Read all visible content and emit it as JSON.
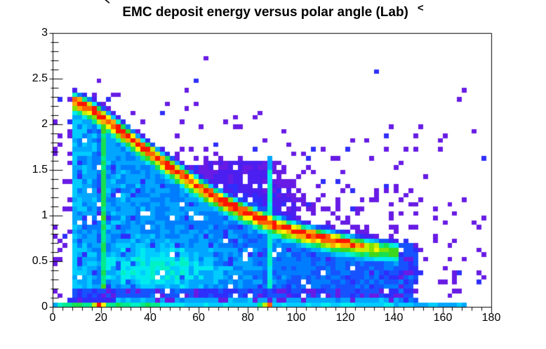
{
  "title": {
    "text": "EMC deposit energy versus polar angle (Lab)",
    "prefix_mark": "<",
    "suffix_mark": "<"
  },
  "chart_data": {
    "type": "heatmap",
    "title": "EMC deposit energy versus polar angle (Lab)",
    "x_range": [
      0,
      180
    ],
    "y_range": [
      0,
      3
    ],
    "x_bin_width": 2,
    "y_bin_width": 0.05,
    "grid": false,
    "legend": "none",
    "x_ticks": {
      "major_values": [
        0,
        20,
        40,
        60,
        80,
        100,
        120,
        140,
        160,
        180
      ],
      "labels": [
        "0",
        "20",
        "40",
        "60",
        "80",
        "100",
        "120",
        "140",
        "160",
        "180"
      ],
      "minor_step": 4
    },
    "y_ticks": {
      "major_values": [
        0,
        0.5,
        1,
        1.5,
        2,
        2.5,
        3
      ],
      "labels": [
        "0",
        "0.5",
        "1",
        "1.5",
        "2",
        "2.5",
        "3"
      ],
      "minor_step": 0.1
    },
    "palette": [
      "#681be4",
      "#4a1ff0",
      "#2e2efc",
      "#1653ff",
      "#007dff",
      "#00a6ff",
      "#00ccff",
      "#00ebef",
      "#00f2c4",
      "#00ea8e",
      "#16e051",
      "#3dd71d",
      "#80e300",
      "#c4ee00",
      "#fdf500",
      "#ffa800",
      "#ff6000",
      "#ff1400"
    ],
    "background": "#ffffff",
    "frame_color": "#000000",
    "seed": 42,
    "ridge": {
      "comment_visible_structure": "bright red correlation band: deposit energy falls from ~2.25 GeV-equivalent at 10 deg to ~0.62 at 141 deg",
      "points": [
        [
          8,
          2.27
        ],
        [
          12,
          2.23
        ],
        [
          16,
          2.17
        ],
        [
          20,
          2.1
        ],
        [
          24,
          2.02
        ],
        [
          28,
          1.94
        ],
        [
          32,
          1.86
        ],
        [
          36,
          1.77
        ],
        [
          40,
          1.7
        ],
        [
          45,
          1.6
        ],
        [
          50,
          1.51
        ],
        [
          55,
          1.42
        ],
        [
          60,
          1.33
        ],
        [
          65,
          1.25
        ],
        [
          70,
          1.17
        ],
        [
          75,
          1.1
        ],
        [
          80,
          1.04
        ],
        [
          85,
          0.98
        ],
        [
          90,
          0.93
        ],
        [
          95,
          0.88
        ],
        [
          100,
          0.84
        ],
        [
          105,
          0.8
        ],
        [
          110,
          0.77
        ],
        [
          115,
          0.74
        ],
        [
          120,
          0.71
        ],
        [
          125,
          0.68
        ],
        [
          130,
          0.66
        ],
        [
          135,
          0.64
        ],
        [
          141,
          0.62
        ]
      ]
    },
    "features": {
      "acceptance_min_theta": 8,
      "ridge_end_theta": 141,
      "endcap_block_end_theta": 150,
      "gap_stripe_theta": 21,
      "dim_column_theta": 19,
      "mid_stripe_theta": 89,
      "mid_stripe_top_E": 1.6,
      "left_spike_top_E": 2.34,
      "bottom_bright_row_E": 0.05,
      "bottom_dark_band_E": [
        0.05,
        0.2
      ],
      "green_blob_center": [
        45,
        0.42
      ],
      "bottom_row_hotspots_theta": [
        21,
        89
      ],
      "speckle_note": "sparse violet/blue single-bin entries above the band and beyond 141 deg"
    }
  }
}
